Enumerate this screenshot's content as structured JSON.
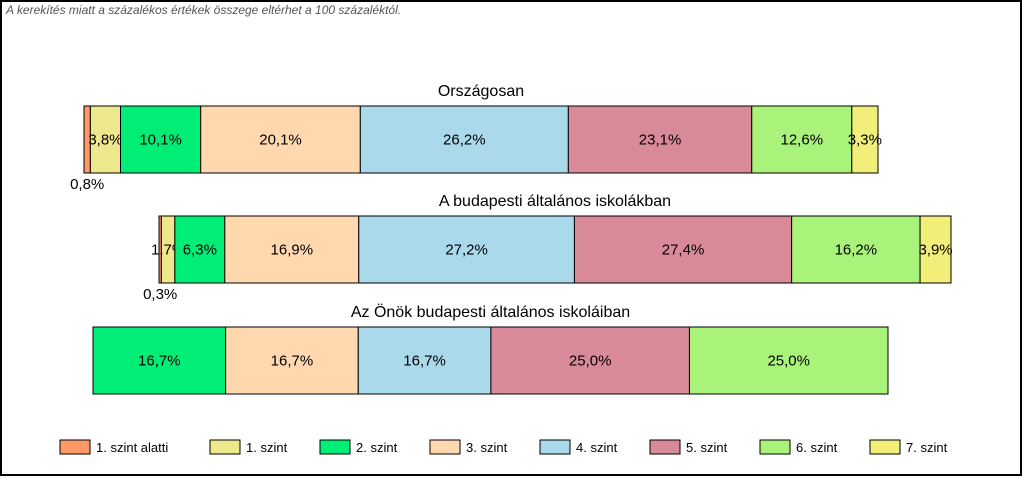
{
  "note": "A kerekítés miatt a  százalékos értékek összege eltérhet a 100 százaléktól.",
  "chart_data": {
    "type": "bar",
    "orientation": "horizontal-stacked",
    "legend_position": "bottom",
    "grid": false,
    "levels": [
      "1. szint alatti",
      "1. szint",
      "2. szint",
      "3. szint",
      "4. szint",
      "5. szint",
      "6. szint",
      "7. szint"
    ],
    "colors": [
      "#FF9966",
      "#EEE88D",
      "#00EE76",
      "#FFD8B0",
      "#A9D9EA",
      "#D98A99",
      "#A9F37A",
      "#F2EE7A"
    ],
    "rows": [
      {
        "title": "Országosan",
        "values": [
          0.8,
          3.8,
          10.1,
          20.1,
          26.2,
          23.1,
          12.6,
          3.3
        ],
        "labels": [
          "0,8%",
          "3,8%",
          "10,1%",
          "20,1%",
          "26,2%",
          "23,1%",
          "12,6%",
          "3,3%"
        ]
      },
      {
        "title": "A budapesti általános iskolákban",
        "values": [
          0.3,
          1.7,
          6.3,
          16.9,
          27.2,
          27.4,
          16.2,
          3.9
        ],
        "labels": [
          "0,3%",
          "1,7%",
          "6,3%",
          "16,9%",
          "27,2%",
          "27,4%",
          "16,2%",
          "3,9%"
        ]
      },
      {
        "title": "Az Önök budapesti általános iskoláiban",
        "values": [
          0,
          0,
          16.7,
          16.7,
          16.7,
          25.0,
          25.0,
          0
        ],
        "labels": [
          "",
          "",
          "16,7%",
          "16,7%",
          "16,7%",
          "25,0%",
          "25,0%",
          ""
        ]
      }
    ]
  }
}
